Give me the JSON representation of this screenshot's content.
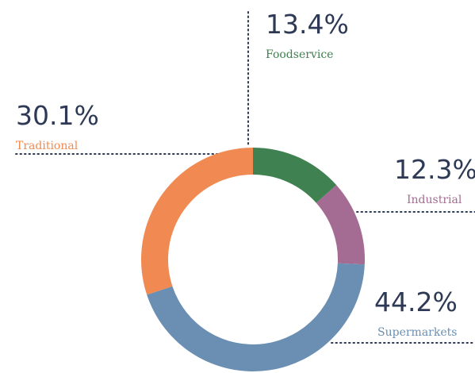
{
  "chart_data": {
    "type": "donut",
    "categories": [
      "Foodservice",
      "Industrial",
      "Supermarkets",
      "Traditional"
    ],
    "values": [
      13.4,
      12.3,
      44.2,
      30.1
    ],
    "value_labels": [
      "13.4%",
      "12.3%",
      "44.2%",
      "30.1%"
    ],
    "colors": [
      "#3f8150",
      "#a46c93",
      "#6a8fb3",
      "#f08a52"
    ]
  }
}
